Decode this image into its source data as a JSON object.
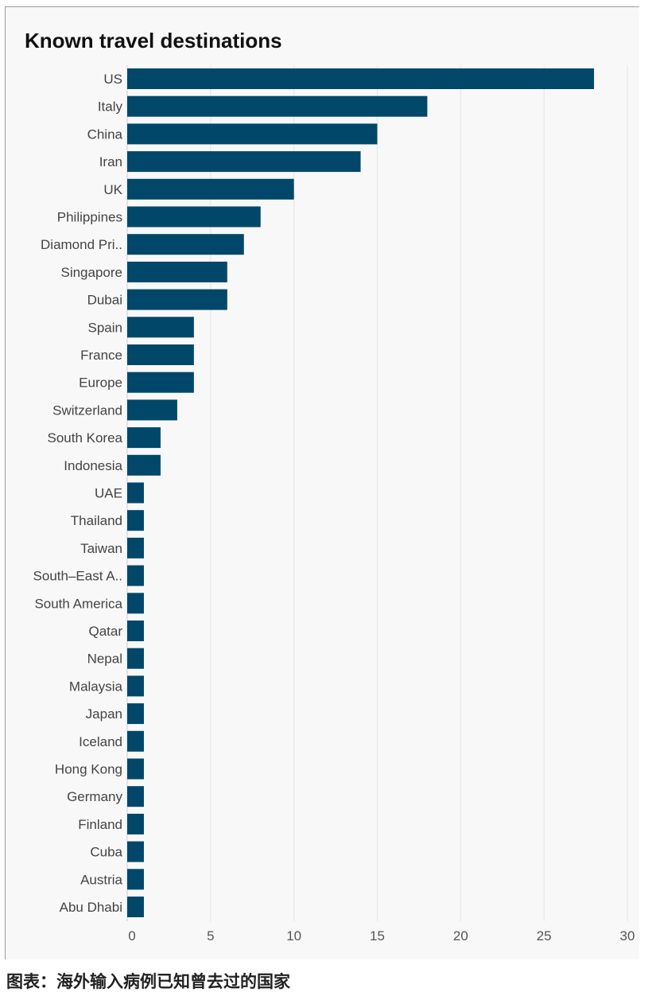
{
  "chart_data": {
    "type": "bar",
    "orientation": "horizontal",
    "title": "Known travel destinations",
    "xlabel": "",
    "ylabel": "",
    "xlim": [
      0,
      30
    ],
    "x_ticks": [
      0,
      5,
      10,
      15,
      20,
      25,
      30
    ],
    "grid": "vertical",
    "bar_color": "#00476a",
    "categories": [
      "US",
      "Italy",
      "China",
      "Iran",
      "UK",
      "Philippines",
      "Diamond Pri..",
      "Singapore",
      "Dubai",
      "Spain",
      "France",
      "Europe",
      "Switzerland",
      "South Korea",
      "Indonesia",
      "UAE",
      "Thailand",
      "Taiwan",
      "South–East A..",
      "South America",
      "Qatar",
      "Nepal",
      "Malaysia",
      "Japan",
      "Iceland",
      "Hong Kong",
      "Germany",
      "Finland",
      "Cuba",
      "Austria",
      "Abu Dhabi"
    ],
    "values": [
      28,
      18,
      15,
      14,
      10,
      8,
      7,
      6,
      6,
      4,
      4,
      4,
      3,
      2,
      2,
      1,
      1,
      1,
      1,
      1,
      1,
      1,
      1,
      1,
      1,
      1,
      1,
      1,
      1,
      1,
      1
    ]
  },
  "caption": "图表：海外输入病例已知曾去过的国家"
}
